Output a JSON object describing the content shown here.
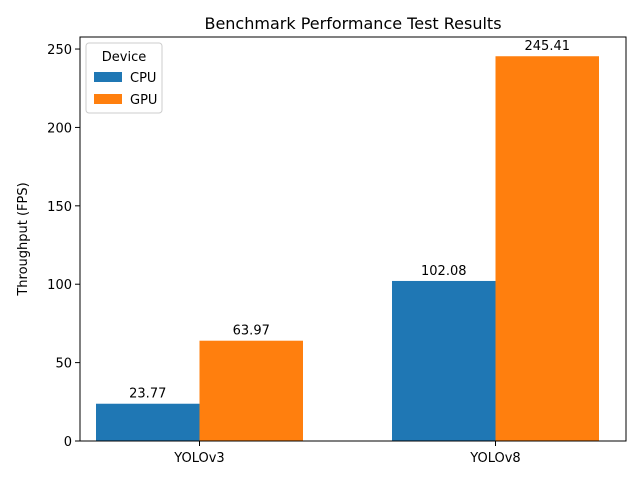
{
  "chart_data": {
    "type": "bar",
    "title": "Benchmark Performance Test Results",
    "xlabel": "",
    "ylabel": "Throughput (FPS)",
    "categories": [
      "YOLOv3",
      "YOLOv8"
    ],
    "series": [
      {
        "name": "CPU",
        "values": [
          23.77,
          102.08
        ],
        "color": "#1f77b4"
      },
      {
        "name": "GPU",
        "values": [
          63.97,
          245.41
        ],
        "color": "#ff7f0e"
      }
    ],
    "ylim": [
      0,
      257.68
    ],
    "yticks": [
      0,
      50,
      100,
      150,
      200,
      250
    ],
    "legend": {
      "title": "Device",
      "placement": "top-left"
    },
    "grid": false
  }
}
